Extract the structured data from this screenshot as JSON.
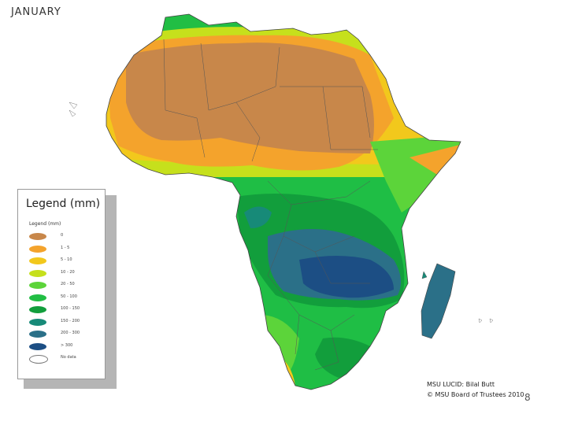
{
  "title": "JANUARY",
  "legend": {
    "title": "Legend (mm)",
    "subtitle": "Legend (mm)",
    "items": [
      {
        "label": "0",
        "color": "#c8874a"
      },
      {
        "label": "1 - 5",
        "color": "#f4a32c"
      },
      {
        "label": "5 - 10",
        "color": "#f2c81c"
      },
      {
        "label": "10 - 20",
        "color": "#c6e01c"
      },
      {
        "label": "20 - 50",
        "color": "#5cd43a"
      },
      {
        "label": "50 - 100",
        "color": "#21be44"
      },
      {
        "label": "100 - 150",
        "color": "#129e3c"
      },
      {
        "label": "150 - 200",
        "color": "#178a78"
      },
      {
        "label": "200 - 300",
        "color": "#2b7088"
      },
      {
        "label": "> 300",
        "color": "#1c4e84"
      },
      {
        "label": "No data",
        "color": "#ffffff"
      }
    ]
  },
  "credit": {
    "line1": "MSU LUCID: Bilal Butt",
    "line2": "© MSU Board of Trustees 2010"
  },
  "page_number": "8"
}
